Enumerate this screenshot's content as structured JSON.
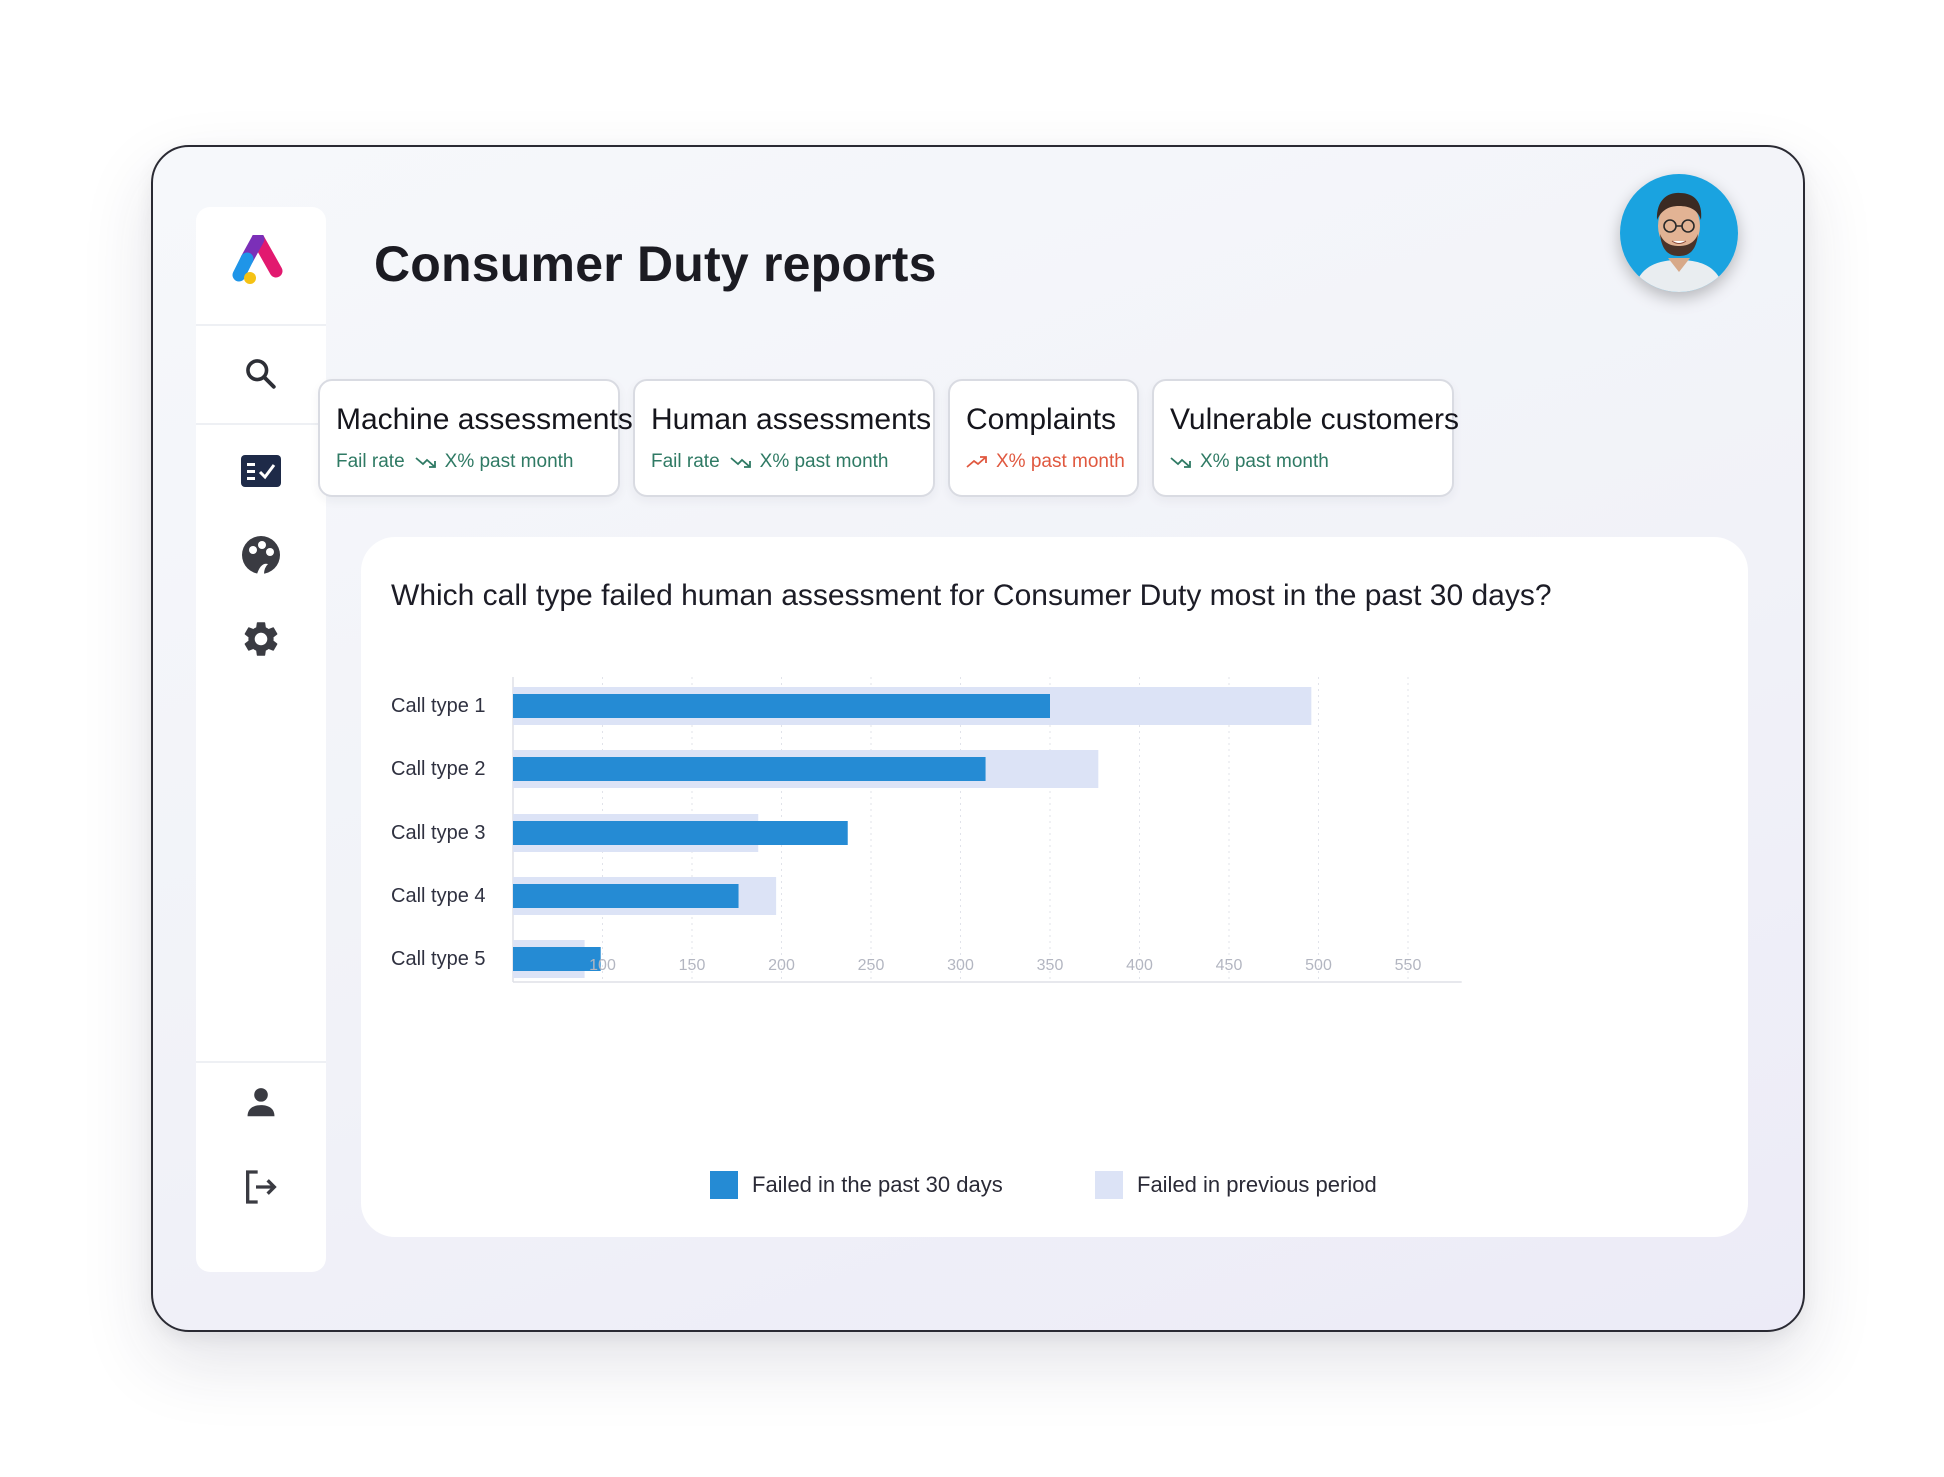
{
  "page": {
    "title": "Consumer Duty reports"
  },
  "user": {
    "avatar_alt": "User avatar"
  },
  "sidebar": {
    "items": [
      {
        "name": "search",
        "icon": "search-icon"
      },
      {
        "name": "reports",
        "icon": "checklist-icon"
      },
      {
        "name": "insights",
        "icon": "palette-icon"
      },
      {
        "name": "settings",
        "icon": "gear-icon"
      },
      {
        "name": "profile",
        "icon": "person-icon"
      },
      {
        "name": "logout",
        "icon": "logout-icon"
      }
    ]
  },
  "cards": [
    {
      "title": "Machine assessments",
      "label": "Fail rate",
      "value": "X% past month",
      "trend": "down",
      "color": "#2f7a64"
    },
    {
      "title": "Human assessments",
      "label": "Fail rate",
      "value": "X% past month",
      "trend": "down",
      "color": "#2f7a64"
    },
    {
      "title": "Complaints",
      "label": "",
      "value": "X% past month",
      "trend": "up",
      "color": "#e0583f"
    },
    {
      "title": "Vulnerable customers",
      "label": "",
      "value": "X% past month",
      "trend": "down",
      "color": "#2f7a64"
    }
  ],
  "chart": {
    "question": "Which call type failed human assessment for Consumer Duty most in the past 30 days?"
  },
  "chart_data": {
    "type": "bar",
    "orientation": "horizontal",
    "title": "Which call type failed human assessment for Consumer Duty most in the past 30 days?",
    "categories": [
      "Call type 1",
      "Call type 2",
      "Call type 3",
      "Call type 4",
      "Call type 5"
    ],
    "series": [
      {
        "name": "Failed in the past 30 days",
        "values": [
          350,
          314,
          237,
          176,
          99
        ],
        "color": "#258bd4"
      },
      {
        "name": "Failed in previous period",
        "values": [
          496,
          377,
          187,
          197,
          90
        ],
        "color": "#dce3f6"
      }
    ],
    "x_ticks": [
      100,
      150,
      200,
      250,
      300,
      350,
      400,
      450,
      500,
      550
    ],
    "xlim": [
      50,
      580
    ],
    "grid": "vertical-dotted",
    "legend_position": "bottom"
  }
}
